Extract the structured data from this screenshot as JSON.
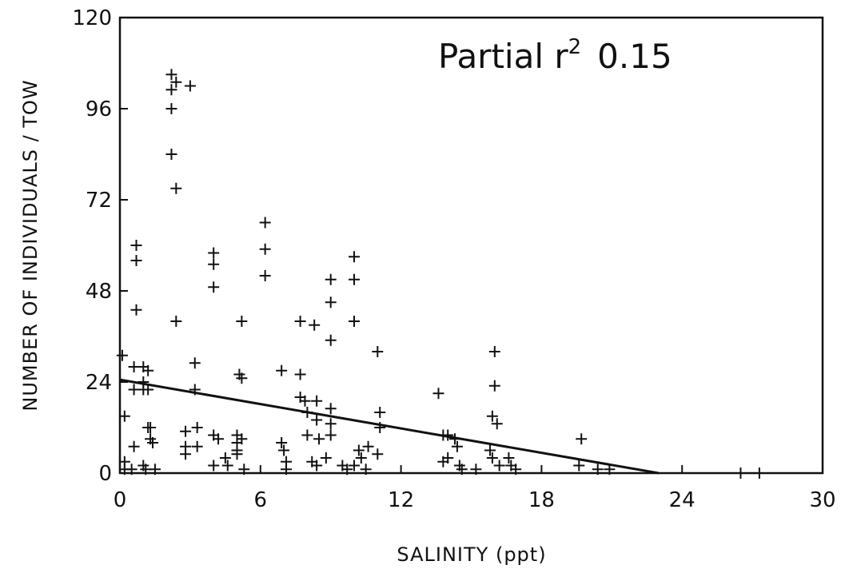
{
  "chart_data": {
    "type": "scatter",
    "title": "",
    "annotation": {
      "text": "Partial r",
      "superscript": "2",
      "value": "0.15"
    },
    "xlabel": "SALINITY (ppt)",
    "ylabel": "NUMBER OF INDIVIDUALS / TOW",
    "xlim": [
      0,
      30
    ],
    "ylim": [
      0,
      120
    ],
    "xticks": [
      0,
      6,
      12,
      18,
      24,
      30
    ],
    "yticks": [
      0,
      24,
      48,
      72,
      96,
      120
    ],
    "grid": false,
    "marker": "+",
    "points": [
      [
        0.1,
        31
      ],
      [
        0.2,
        15
      ],
      [
        0.2,
        3
      ],
      [
        0.2,
        1
      ],
      [
        0.5,
        1
      ],
      [
        0.6,
        28
      ],
      [
        0.6,
        22
      ],
      [
        0.6,
        7
      ],
      [
        0.7,
        60
      ],
      [
        0.7,
        56
      ],
      [
        0.7,
        43
      ],
      [
        1.0,
        28
      ],
      [
        1.0,
        24
      ],
      [
        1.0,
        22
      ],
      [
        1.0,
        2
      ],
      [
        1.1,
        1
      ],
      [
        1.2,
        27
      ],
      [
        1.2,
        22
      ],
      [
        1.2,
        12
      ],
      [
        1.3,
        12
      ],
      [
        1.3,
        9
      ],
      [
        1.4,
        8
      ],
      [
        1.5,
        1
      ],
      [
        2.2,
        105
      ],
      [
        2.2,
        101
      ],
      [
        2.2,
        96
      ],
      [
        2.2,
        84
      ],
      [
        2.4,
        103
      ],
      [
        2.4,
        75
      ],
      [
        2.4,
        40
      ],
      [
        2.8,
        11
      ],
      [
        2.8,
        7
      ],
      [
        2.8,
        5
      ],
      [
        3.0,
        102
      ],
      [
        3.2,
        29
      ],
      [
        3.2,
        22
      ],
      [
        3.3,
        12
      ],
      [
        3.3,
        7
      ],
      [
        4.0,
        58
      ],
      [
        4.0,
        55
      ],
      [
        4.0,
        49
      ],
      [
        4.0,
        10
      ],
      [
        4.0,
        2
      ],
      [
        4.2,
        9
      ],
      [
        4.5,
        4
      ],
      [
        4.6,
        2
      ],
      [
        5.0,
        10
      ],
      [
        5.0,
        8
      ],
      [
        5.0,
        6
      ],
      [
        5.0,
        5
      ],
      [
        5.1,
        26
      ],
      [
        5.2,
        25
      ],
      [
        5.2,
        40
      ],
      [
        5.2,
        9
      ],
      [
        5.3,
        1
      ],
      [
        6.2,
        66
      ],
      [
        6.2,
        59
      ],
      [
        6.2,
        52
      ],
      [
        6.9,
        27
      ],
      [
        6.9,
        8
      ],
      [
        7.0,
        6
      ],
      [
        7.1,
        3
      ],
      [
        7.1,
        1
      ],
      [
        7.7,
        26
      ],
      [
        7.7,
        20
      ],
      [
        7.7,
        40
      ],
      [
        7.9,
        19
      ],
      [
        8.0,
        16
      ],
      [
        8.0,
        10
      ],
      [
        8.2,
        3
      ],
      [
        8.3,
        39
      ],
      [
        8.4,
        19
      ],
      [
        8.4,
        14
      ],
      [
        8.5,
        9
      ],
      [
        8.4,
        2
      ],
      [
        9.0,
        51
      ],
      [
        9.0,
        45
      ],
      [
        9.0,
        35
      ],
      [
        9.0,
        17
      ],
      [
        9.0,
        13
      ],
      [
        9.0,
        10
      ],
      [
        8.8,
        4
      ],
      [
        9.5,
        2
      ],
      [
        9.7,
        1
      ],
      [
        10.0,
        57
      ],
      [
        10.0,
        51
      ],
      [
        10.0,
        40
      ],
      [
        10.0,
        2
      ],
      [
        10.2,
        6
      ],
      [
        10.3,
        4
      ],
      [
        10.5,
        1
      ],
      [
        10.6,
        7
      ],
      [
        11.0,
        32
      ],
      [
        11.1,
        16
      ],
      [
        11.1,
        12
      ],
      [
        11.0,
        5
      ],
      [
        13.6,
        21
      ],
      [
        13.8,
        10
      ],
      [
        13.8,
        3
      ],
      [
        14.0,
        10
      ],
      [
        14.0,
        4
      ],
      [
        14.3,
        9
      ],
      [
        14.4,
        7
      ],
      [
        14.5,
        2
      ],
      [
        14.6,
        1
      ],
      [
        15.2,
        1
      ],
      [
        16.0,
        32
      ],
      [
        16.0,
        23
      ],
      [
        15.9,
        15
      ],
      [
        16.1,
        13
      ],
      [
        15.8,
        6
      ],
      [
        15.9,
        4
      ],
      [
        16.2,
        2
      ],
      [
        16.6,
        4
      ],
      [
        16.7,
        2
      ],
      [
        16.9,
        1
      ],
      [
        19.7,
        9
      ],
      [
        19.6,
        2
      ],
      [
        20.4,
        1
      ],
      [
        20.9,
        1
      ],
      [
        26.5,
        0
      ],
      [
        27.3,
        0
      ]
    ],
    "fit_line": {
      "x": [
        0,
        23
      ],
      "y": [
        24.6,
        0
      ]
    }
  }
}
